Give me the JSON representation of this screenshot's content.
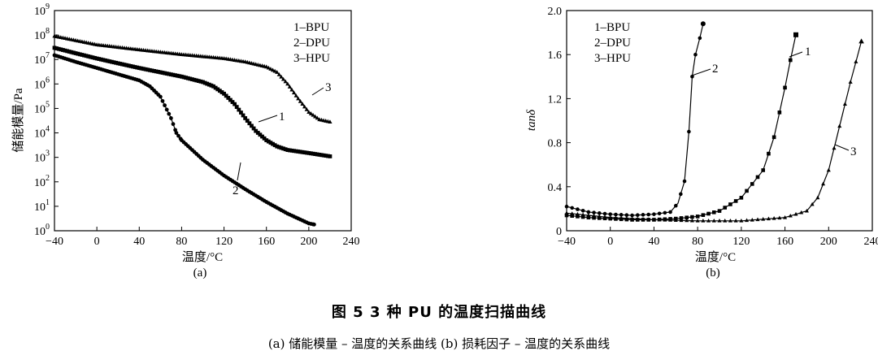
{
  "figure": {
    "title": "图 5   3 种 PU 的温度扫描曲线",
    "subtitle": "(a) 储能模量 – 温度的关系曲线   (b) 损耗因子 – 温度的关系曲线"
  },
  "chart_data": [
    {
      "type": "line",
      "panel_label": "(a)",
      "xlabel": "温度/°C",
      "ylabel": "储能模量/Pa",
      "xlim": [
        -40,
        240
      ],
      "ylim_log10": [
        0,
        9
      ],
      "yscale": "log",
      "xticks": [
        "-40",
        "0",
        "40",
        "80",
        "120",
        "160",
        "200",
        "240"
      ],
      "ytick_exponents": [
        "0",
        "1",
        "2",
        "3",
        "4",
        "5",
        "6",
        "7",
        "8",
        "9"
      ],
      "ytick_base": "10",
      "legend": [
        "1–BPU",
        "2–DPU",
        "3–HPU"
      ],
      "legend_position": "top-right",
      "grid": false,
      "series": [
        {
          "name": "1",
          "marker": "square",
          "x": [
            -40,
            -20,
            0,
            20,
            40,
            60,
            80,
            100,
            110,
            120,
            130,
            140,
            150,
            160,
            170,
            180,
            200,
            220
          ],
          "y": [
            30000000,
            18000000,
            11000000,
            7000000,
            4500000,
            3000000,
            2000000,
            1200000,
            800000,
            400000,
            150000,
            40000,
            12000,
            5000,
            2800,
            2000,
            1500,
            1100
          ]
        },
        {
          "name": "2",
          "marker": "circle",
          "x": [
            -40,
            -20,
            0,
            20,
            40,
            50,
            60,
            70,
            75,
            80,
            90,
            100,
            120,
            140,
            160,
            180,
            200,
            205
          ],
          "y": [
            15000000,
            8000000,
            4500000,
            2500000,
            1400000,
            800000,
            300000,
            40000,
            10000,
            5000,
            2000,
            800,
            180,
            50,
            15,
            5,
            2,
            1.8
          ]
        },
        {
          "name": "3",
          "marker": "triangle",
          "x": [
            -40,
            0,
            40,
            80,
            120,
            140,
            160,
            170,
            180,
            190,
            200,
            210,
            220
          ],
          "y": [
            90000000,
            40000000,
            25000000,
            16000000,
            11000000,
            8000000,
            5000000,
            3000000,
            1000000,
            250000,
            70000,
            35000,
            28000
          ]
        }
      ],
      "annotations": [
        "1",
        "2",
        "3"
      ]
    },
    {
      "type": "line",
      "panel_label": "(b)",
      "xlabel": "温度/°C",
      "ylabel": "tanδ",
      "xlim": [
        -40,
        240
      ],
      "ylim": [
        0,
        2.0
      ],
      "xticks": [
        "-40",
        "0",
        "40",
        "80",
        "120",
        "160",
        "200",
        "240"
      ],
      "yticks": [
        "0",
        "0.4",
        "0.8",
        "1.2",
        "1.6",
        "2.0"
      ],
      "legend": [
        "1–BPU",
        "2–DPU",
        "3–HPU"
      ],
      "legend_position": "top-left",
      "grid": false,
      "series": [
        {
          "name": "1",
          "marker": "square",
          "x": [
            -40,
            -20,
            0,
            20,
            40,
            60,
            80,
            100,
            120,
            140,
            150,
            160,
            165,
            170
          ],
          "y": [
            0.14,
            0.12,
            0.11,
            0.1,
            0.1,
            0.11,
            0.13,
            0.18,
            0.3,
            0.55,
            0.85,
            1.3,
            1.55,
            1.78
          ]
        },
        {
          "name": "2",
          "marker": "circle",
          "x": [
            -40,
            -20,
            0,
            20,
            40,
            55,
            62,
            68,
            72,
            75,
            78,
            82,
            85
          ],
          "y": [
            0.22,
            0.17,
            0.15,
            0.14,
            0.15,
            0.17,
            0.25,
            0.45,
            0.9,
            1.4,
            1.6,
            1.75,
            1.88
          ]
        },
        {
          "name": "3",
          "marker": "triangle",
          "x": [
            -40,
            0,
            40,
            80,
            120,
            160,
            180,
            190,
            200,
            210,
            220,
            230
          ],
          "y": [
            0.16,
            0.12,
            0.1,
            0.09,
            0.09,
            0.12,
            0.18,
            0.3,
            0.55,
            0.95,
            1.35,
            1.72
          ]
        }
      ],
      "annotations": [
        "1",
        "2",
        "3"
      ]
    }
  ]
}
